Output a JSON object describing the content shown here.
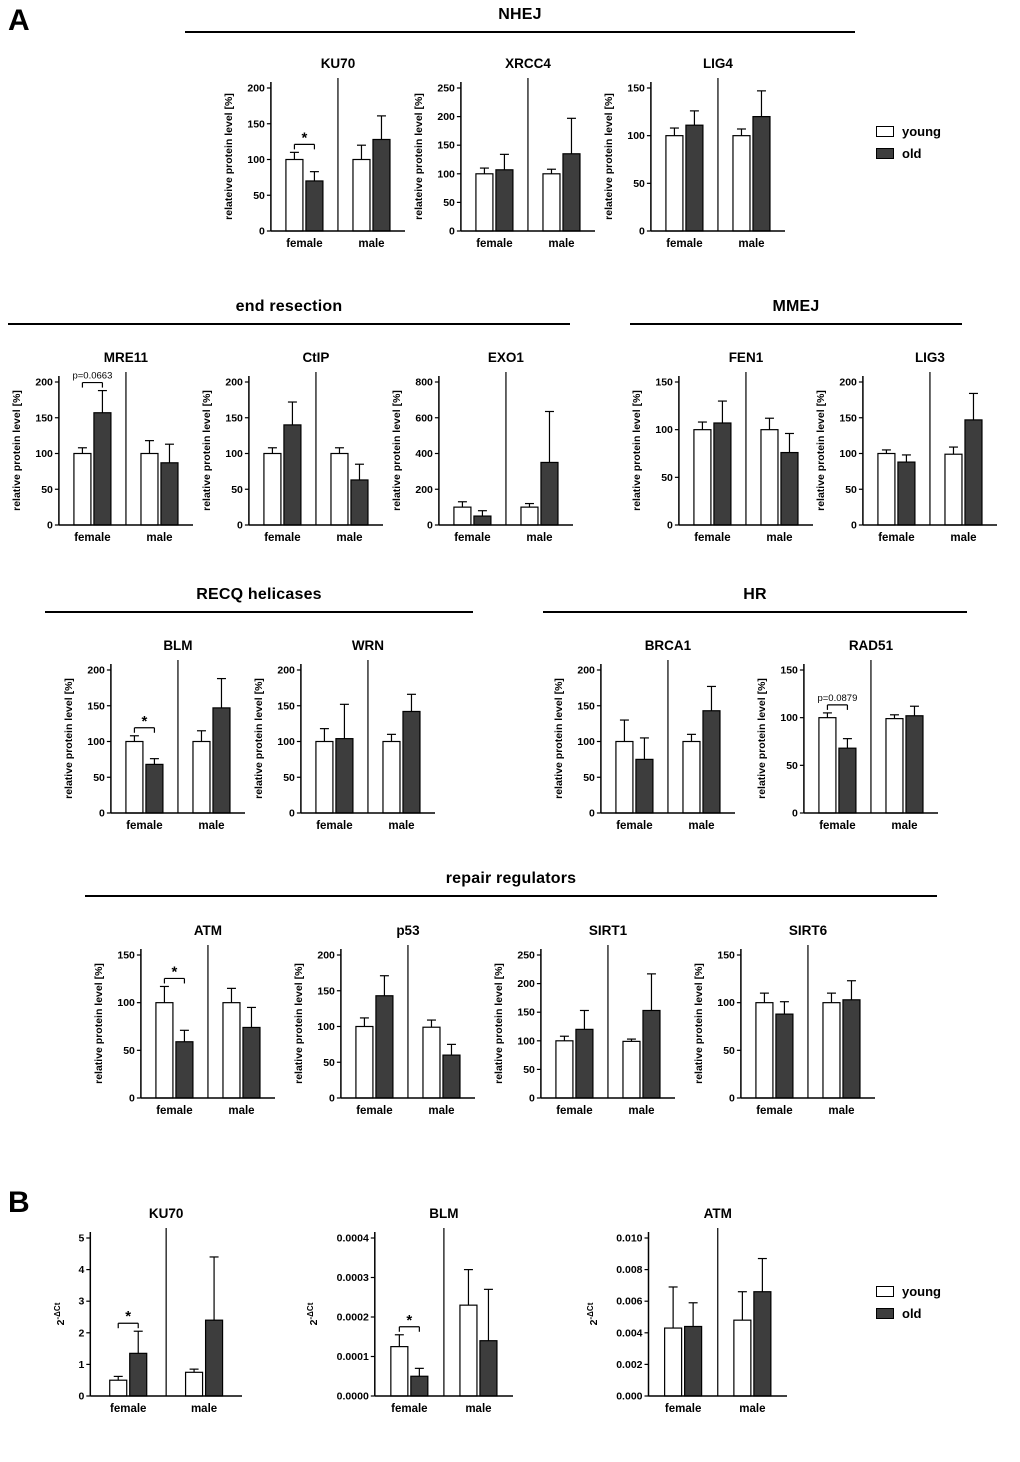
{
  "panels": {
    "a": "A",
    "b": "B"
  },
  "legend": {
    "young": "young",
    "old": "old"
  },
  "colors": {
    "young": "#ffffff",
    "old": "#3d3d3d",
    "axis": "#000000"
  },
  "sections": {
    "nhej": "NHEJ",
    "end_resection": "end resection",
    "mmej": "MMEJ",
    "recq": "RECQ helicases",
    "hr": "HR",
    "regulators": "repair regulators"
  },
  "chart_data": [
    {
      "id": "A-KU70",
      "panel": "A",
      "group": "NHEJ",
      "type": "bar",
      "title": "KU70",
      "ylabel": "relateive protein level [%]",
      "ylim": [
        0,
        200
      ],
      "yticks": [
        "0",
        "50",
        "100",
        "150",
        "200"
      ],
      "categories": [
        "female",
        "male"
      ],
      "series": [
        {
          "name": "young",
          "values": [
            100,
            100
          ],
          "errors": [
            10,
            20
          ]
        },
        {
          "name": "old",
          "values": [
            70,
            128
          ],
          "errors": [
            13,
            33
          ]
        }
      ],
      "annotation": {
        "text": "*",
        "category": "female",
        "between": [
          "young",
          "old"
        ]
      }
    },
    {
      "id": "A-XRCC4",
      "panel": "A",
      "group": "NHEJ",
      "type": "bar",
      "title": "XRCC4",
      "ylabel": "relateive protein level [%]",
      "ylim": [
        0,
        250
      ],
      "yticks": [
        "0",
        "50",
        "100",
        "150",
        "200",
        "250"
      ],
      "categories": [
        "female",
        "male"
      ],
      "series": [
        {
          "name": "young",
          "values": [
            100,
            100
          ],
          "errors": [
            10,
            8
          ]
        },
        {
          "name": "old",
          "values": [
            107,
            135
          ],
          "errors": [
            27,
            62
          ]
        }
      ]
    },
    {
      "id": "A-LIG4",
      "panel": "A",
      "group": "NHEJ",
      "type": "bar",
      "title": "LIG4",
      "ylabel": "relateive protein level [%]",
      "ylim": [
        0,
        150
      ],
      "yticks": [
        "0",
        "50",
        "100",
        "150"
      ],
      "categories": [
        "female",
        "male"
      ],
      "series": [
        {
          "name": "young",
          "values": [
            100,
            100
          ],
          "errors": [
            8,
            7
          ]
        },
        {
          "name": "old",
          "values": [
            111,
            120
          ],
          "errors": [
            15,
            27
          ]
        }
      ]
    },
    {
      "id": "A-MRE11",
      "panel": "A",
      "group": "end resection",
      "type": "bar",
      "title": "MRE11",
      "ylabel": "relative protein level [%]",
      "ylim": [
        0,
        200
      ],
      "yticks": [
        "0",
        "50",
        "100",
        "150",
        "200"
      ],
      "categories": [
        "female",
        "male"
      ],
      "series": [
        {
          "name": "young",
          "values": [
            100,
            100
          ],
          "errors": [
            8,
            18
          ]
        },
        {
          "name": "old",
          "values": [
            157,
            87
          ],
          "errors": [
            31,
            26
          ]
        }
      ],
      "annotation": {
        "text": "p=0.0663",
        "category": "female",
        "between": [
          "young",
          "old"
        ]
      }
    },
    {
      "id": "A-CtIP",
      "panel": "A",
      "group": "end resection",
      "type": "bar",
      "title": "CtIP",
      "ylabel": "relative protein level [%]",
      "ylim": [
        0,
        200
      ],
      "yticks": [
        "0",
        "50",
        "100",
        "150",
        "200"
      ],
      "categories": [
        "female",
        "male"
      ],
      "series": [
        {
          "name": "young",
          "values": [
            100,
            100
          ],
          "errors": [
            8,
            8
          ]
        },
        {
          "name": "old",
          "values": [
            140,
            63
          ],
          "errors": [
            32,
            22
          ]
        }
      ]
    },
    {
      "id": "A-EXO1",
      "panel": "A",
      "group": "end resection",
      "type": "bar",
      "title": "EXO1",
      "ylabel": "relative protein level [%]",
      "ylim": [
        0,
        800
      ],
      "yticks": [
        "0",
        "200",
        "400",
        "600",
        "800"
      ],
      "categories": [
        "female",
        "male"
      ],
      "series": [
        {
          "name": "young",
          "values": [
            100,
            100
          ],
          "errors": [
            30,
            20
          ]
        },
        {
          "name": "old",
          "values": [
            50,
            350
          ],
          "errors": [
            30,
            285
          ]
        }
      ]
    },
    {
      "id": "A-FEN1",
      "panel": "A",
      "group": "MMEJ",
      "type": "bar",
      "title": "FEN1",
      "ylabel": "relative protein level [%]",
      "ylim": [
        0,
        150
      ],
      "yticks": [
        "0",
        "50",
        "100",
        "150"
      ],
      "categories": [
        "female",
        "male"
      ],
      "series": [
        {
          "name": "young",
          "values": [
            100,
            100
          ],
          "errors": [
            8,
            12
          ]
        },
        {
          "name": "old",
          "values": [
            107,
            76
          ],
          "errors": [
            23,
            20
          ]
        }
      ]
    },
    {
      "id": "A-LIG3",
      "panel": "A",
      "group": "MMEJ",
      "type": "bar",
      "title": "LIG3",
      "ylabel": "relative protein level [%]",
      "ylim": [
        0,
        200
      ],
      "yticks": [
        "0",
        "50",
        "100",
        "150",
        "200"
      ],
      "categories": [
        "female",
        "male"
      ],
      "series": [
        {
          "name": "young",
          "values": [
            100,
            99
          ],
          "errors": [
            5,
            10
          ]
        },
        {
          "name": "old",
          "values": [
            88,
            147
          ],
          "errors": [
            10,
            37
          ]
        }
      ]
    },
    {
      "id": "A-BLM",
      "panel": "A",
      "group": "RECQ helicases",
      "type": "bar",
      "title": "BLM",
      "ylabel": "relative protein level [%]",
      "ylim": [
        0,
        200
      ],
      "yticks": [
        "0",
        "50",
        "100",
        "150",
        "200"
      ],
      "categories": [
        "female",
        "male"
      ],
      "series": [
        {
          "name": "young",
          "values": [
            100,
            100
          ],
          "errors": [
            8,
            15
          ]
        },
        {
          "name": "old",
          "values": [
            68,
            147
          ],
          "errors": [
            8,
            41
          ]
        }
      ],
      "annotation": {
        "text": "*",
        "category": "female",
        "between": [
          "young",
          "old"
        ]
      }
    },
    {
      "id": "A-WRN",
      "panel": "A",
      "group": "RECQ helicases",
      "type": "bar",
      "title": "WRN",
      "ylabel": "relative protein level [%]",
      "ylim": [
        0,
        200
      ],
      "yticks": [
        "0",
        "50",
        "100",
        "150",
        "200"
      ],
      "categories": [
        "female",
        "male"
      ],
      "series": [
        {
          "name": "young",
          "values": [
            100,
            100
          ],
          "errors": [
            18,
            10
          ]
        },
        {
          "name": "old",
          "values": [
            104,
            142
          ],
          "errors": [
            48,
            24
          ]
        }
      ]
    },
    {
      "id": "A-BRCA1",
      "panel": "A",
      "group": "HR",
      "type": "bar",
      "title": "BRCA1",
      "ylabel": "relative protein level [%]",
      "ylim": [
        0,
        200
      ],
      "yticks": [
        "0",
        "50",
        "100",
        "150",
        "200"
      ],
      "categories": [
        "female",
        "male"
      ],
      "series": [
        {
          "name": "young",
          "values": [
            100,
            100
          ],
          "errors": [
            30,
            10
          ]
        },
        {
          "name": "old",
          "values": [
            75,
            143
          ],
          "errors": [
            30,
            34
          ]
        }
      ]
    },
    {
      "id": "A-RAD51",
      "panel": "A",
      "group": "HR",
      "type": "bar",
      "title": "RAD51",
      "ylabel": "relative protein level [%]",
      "ylim": [
        0,
        150
      ],
      "yticks": [
        "0",
        "50",
        "100",
        "150"
      ],
      "categories": [
        "female",
        "male"
      ],
      "series": [
        {
          "name": "young",
          "values": [
            100,
            99
          ],
          "errors": [
            5,
            4
          ]
        },
        {
          "name": "old",
          "values": [
            68,
            102
          ],
          "errors": [
            10,
            10
          ]
        }
      ],
      "annotation": {
        "text": "p=0.0879",
        "category": "female",
        "between": [
          "young",
          "old"
        ]
      }
    },
    {
      "id": "A-ATM",
      "panel": "A",
      "group": "repair regulators",
      "type": "bar",
      "title": "ATM",
      "ylabel": "relative protein level [%]",
      "ylim": [
        0,
        150
      ],
      "yticks": [
        "0",
        "50",
        "100",
        "150"
      ],
      "categories": [
        "female",
        "male"
      ],
      "series": [
        {
          "name": "young",
          "values": [
            100,
            100
          ],
          "errors": [
            17,
            15
          ]
        },
        {
          "name": "old",
          "values": [
            59,
            74
          ],
          "errors": [
            12,
            21
          ]
        }
      ],
      "annotation": {
        "text": "*",
        "category": "female",
        "between": [
          "young",
          "old"
        ]
      }
    },
    {
      "id": "A-p53",
      "panel": "A",
      "group": "repair regulators",
      "type": "bar",
      "title": "p53",
      "ylabel": "relative protein level [%]",
      "ylim": [
        0,
        200
      ],
      "yticks": [
        "0",
        "50",
        "100",
        "150",
        "200"
      ],
      "categories": [
        "female",
        "male"
      ],
      "series": [
        {
          "name": "young",
          "values": [
            100,
            99
          ],
          "errors": [
            12,
            10
          ]
        },
        {
          "name": "old",
          "values": [
            143,
            60
          ],
          "errors": [
            28,
            15
          ]
        }
      ]
    },
    {
      "id": "A-SIRT1",
      "panel": "A",
      "group": "repair regulators",
      "type": "bar",
      "title": "SIRT1",
      "ylabel": "relative protein level [%]",
      "ylim": [
        0,
        250
      ],
      "yticks": [
        "0",
        "50",
        "100",
        "150",
        "200",
        "250"
      ],
      "categories": [
        "female",
        "male"
      ],
      "series": [
        {
          "name": "young",
          "values": [
            100,
            99
          ],
          "errors": [
            8,
            4
          ]
        },
        {
          "name": "old",
          "values": [
            120,
            153
          ],
          "errors": [
            33,
            64
          ]
        }
      ]
    },
    {
      "id": "A-SIRT6",
      "panel": "A",
      "group": "repair regulators",
      "type": "bar",
      "title": "SIRT6",
      "ylabel": "relative protein level [%]",
      "ylim": [
        0,
        150
      ],
      "yticks": [
        "0",
        "50",
        "100",
        "150"
      ],
      "categories": [
        "female",
        "male"
      ],
      "series": [
        {
          "name": "young",
          "values": [
            100,
            100
          ],
          "errors": [
            10,
            10
          ]
        },
        {
          "name": "old",
          "values": [
            88,
            103
          ],
          "errors": [
            13,
            20
          ]
        }
      ]
    },
    {
      "id": "B-KU70",
      "panel": "B",
      "group": "mRNA",
      "type": "bar",
      "title": "KU70",
      "ylabel": "2",
      "ylabel_sup": "-ΔCt",
      "ylim": [
        0,
        5
      ],
      "yticks": [
        "0",
        "1",
        "2",
        "3",
        "4",
        "5"
      ],
      "categories": [
        "female",
        "male"
      ],
      "series": [
        {
          "name": "young",
          "values": [
            0.5,
            0.75
          ],
          "errors": [
            0.12,
            0.1
          ]
        },
        {
          "name": "old",
          "values": [
            1.35,
            2.4
          ],
          "errors": [
            0.7,
            2.0
          ]
        }
      ],
      "annotation": {
        "text": "*",
        "category": "female",
        "between": [
          "young",
          "old"
        ]
      }
    },
    {
      "id": "B-BLM",
      "panel": "B",
      "group": "mRNA",
      "type": "bar",
      "title": "BLM",
      "ylabel": "2",
      "ylabel_sup": "-ΔCt",
      "ylim": [
        0,
        0.0004
      ],
      "yticks": [
        "0.0000",
        "0.0001",
        "0.0002",
        "0.0003",
        "0.0004"
      ],
      "categories": [
        "female",
        "male"
      ],
      "series": [
        {
          "name": "young",
          "values": [
            0.000125,
            0.00023
          ],
          "errors": [
            3e-05,
            9e-05
          ]
        },
        {
          "name": "old",
          "values": [
            5e-05,
            0.00014
          ],
          "errors": [
            2e-05,
            0.00013
          ]
        }
      ],
      "annotation": {
        "text": "*",
        "category": "female",
        "between": [
          "young",
          "old"
        ]
      }
    },
    {
      "id": "B-ATM",
      "panel": "B",
      "group": "mRNA",
      "type": "bar",
      "title": "ATM",
      "ylabel": "2",
      "ylabel_sup": "-ΔCt",
      "ylim": [
        0,
        0.01
      ],
      "yticks": [
        "0.000",
        "0.002",
        "0.004",
        "0.006",
        "0.008",
        "0.010"
      ],
      "categories": [
        "female",
        "male"
      ],
      "series": [
        {
          "name": "young",
          "values": [
            0.0043,
            0.0048
          ],
          "errors": [
            0.0026,
            0.0018
          ]
        },
        {
          "name": "old",
          "values": [
            0.0044,
            0.0066
          ],
          "errors": [
            0.0015,
            0.0021
          ]
        }
      ]
    }
  ]
}
